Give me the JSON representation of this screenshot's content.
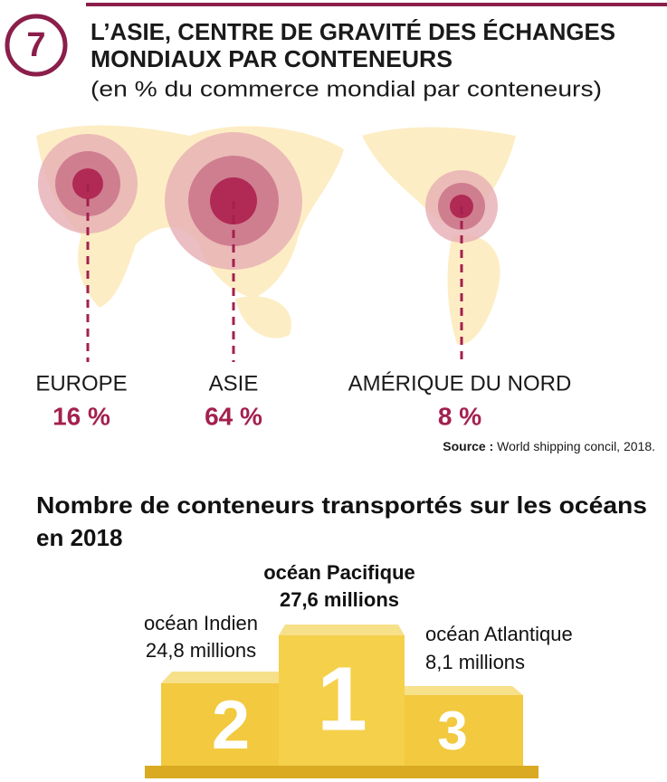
{
  "header": {
    "number": "7",
    "title": [
      "L’ASIE, CENTRE DE GRAVITÉ DES ÉCHANGES",
      "MONDIAUX PAR CONTENEURS"
    ],
    "subtitle": "(en % du commerce mondial par conteneurs)"
  },
  "regions": [
    {
      "name": "EUROPE",
      "share": "16 %"
    },
    {
      "name": "ASIE",
      "share": "64 %"
    },
    {
      "name": "AMÉRIQUE DU NORD",
      "share": "8 %"
    }
  ],
  "source": {
    "label": "Source :",
    "text": "World shipping concil, 2018."
  },
  "podium": {
    "title": [
      "Nombre de conteneurs transportés sur les océans",
      "en 2018"
    ],
    "places": [
      {
        "rank": "1",
        "ocean": "océan Pacifique",
        "count": "27,6 millions"
      },
      {
        "rank": "2",
        "ocean": "océan Indien",
        "count": "24,8 millions"
      },
      {
        "rank": "3",
        "ocean": "océan Atlantique",
        "count": "8,1 millions"
      }
    ]
  }
}
